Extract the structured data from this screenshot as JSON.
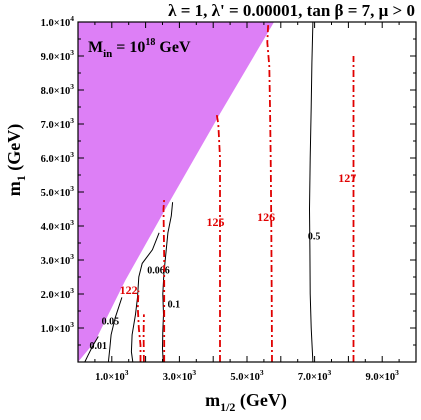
{
  "chart_data": {
    "type": "line",
    "title": "λ = 1, λ' = 0.00001, tan β = 7, μ > 0",
    "annotation": "M",
    "annotation_sub": "in",
    "annotation_rest": " = 10",
    "annotation_exp": "18",
    "annotation_unit": " GeV",
    "xlabel": "m",
    "xlabel_sub": "1/2",
    "xlabel_unit": " (GeV)",
    "ylabel": "m",
    "ylabel_sub": "1",
    "ylabel_unit": " (GeV)",
    "xlim": [
      0,
      10000
    ],
    "ylim": [
      0,
      10000
    ],
    "grid": false,
    "x_ticks": [
      {
        "value": 1000,
        "mantissa": "1.0×10",
        "exp": "3"
      },
      {
        "value": 3000,
        "mantissa": "3.0×10",
        "exp": "3"
      },
      {
        "value": 5000,
        "mantissa": "5.0×10",
        "exp": "3"
      },
      {
        "value": 7000,
        "mantissa": "7.0×10",
        "exp": "3"
      },
      {
        "value": 9000,
        "mantissa": "9.0×10",
        "exp": "3"
      }
    ],
    "y_ticks": [
      {
        "value": 1000,
        "mantissa": "1.0×10",
        "exp": "3"
      },
      {
        "value": 2000,
        "mantissa": "2.0×10",
        "exp": "3"
      },
      {
        "value": 3000,
        "mantissa": "3.0×10",
        "exp": "3"
      },
      {
        "value": 4000,
        "mantissa": "4.0×10",
        "exp": "3"
      },
      {
        "value": 5000,
        "mantissa": "5.0×10",
        "exp": "3"
      },
      {
        "value": 6000,
        "mantissa": "6.0×10",
        "exp": "3"
      },
      {
        "value": 7000,
        "mantissa": "7.0×10",
        "exp": "3"
      },
      {
        "value": 8000,
        "mantissa": "8.0×10",
        "exp": "3"
      },
      {
        "value": 9000,
        "mantissa": "9.0×10",
        "exp": "3"
      },
      {
        "value": 10000,
        "mantissa": "1.0×10",
        "exp": "4"
      }
    ],
    "excluded_region": {
      "color": "#dd7ff6",
      "points": [
        [
          0,
          3900
        ],
        [
          0,
          10000
        ],
        [
          5800,
          10000
        ],
        [
          4200,
          7300
        ],
        [
          2700,
          4700
        ],
        [
          1400,
          2400
        ],
        [
          500,
          600
        ],
        [
          0,
          0
        ]
      ]
    },
    "series": [
      {
        "label": "0.01",
        "style": "solid",
        "color": "#000000",
        "label_at": [
          340,
          380
        ],
        "points": [
          [
            200,
            0
          ],
          [
            300,
            200
          ],
          [
            450,
            500
          ],
          [
            600,
            750
          ]
        ]
      },
      {
        "label": "0.05",
        "style": "solid",
        "color": "#000000",
        "label_at": [
          700,
          1100
        ],
        "points": [
          [
            900,
            0
          ],
          [
            940,
            400
          ],
          [
            980,
            800
          ],
          [
            1100,
            1300
          ],
          [
            1300,
            1900
          ]
        ]
      },
      {
        "label": "0.066",
        "style": "solid",
        "color": "#000000",
        "label_at": [
          2050,
          2600
        ],
        "points": [
          [
            1620,
            0
          ],
          [
            1580,
            300
          ],
          [
            1600,
            800
          ],
          [
            1700,
            1400
          ],
          [
            1760,
            1900
          ],
          [
            1800,
            2500
          ],
          [
            1900,
            2900
          ],
          [
            2200,
            3300
          ],
          [
            2400,
            3800
          ]
        ]
      },
      {
        "label": "0.1",
        "style": "solid",
        "color": "#000000",
        "label_at": [
          2650,
          1600
        ],
        "points": [
          [
            2520,
            0
          ],
          [
            2500,
            400
          ],
          [
            2510,
            900
          ],
          [
            2530,
            1400
          ],
          [
            2510,
            2000
          ],
          [
            2540,
            2600
          ],
          [
            2600,
            3200
          ],
          [
            2660,
            3800
          ],
          [
            2760,
            4300
          ],
          [
            2800,
            4700
          ]
        ]
      },
      {
        "label": "0.5",
        "style": "solid",
        "color": "#000000",
        "label_at": [
          6800,
          3600
        ],
        "points": [
          [
            6950,
            0
          ],
          [
            6900,
            1000
          ],
          [
            6870,
            2000
          ],
          [
            6860,
            3300
          ],
          [
            6850,
            4500
          ],
          [
            6870,
            6000
          ],
          [
            6900,
            7500
          ],
          [
            6920,
            8800
          ],
          [
            6950,
            10000
          ]
        ]
      },
      {
        "label": "122",
        "style": "dashdot",
        "color": "#e00000",
        "label_at": [
          1230,
          2000
        ],
        "points": [
          [
            1850,
            0
          ],
          [
            1850,
            500
          ],
          [
            1800,
            1000
          ],
          [
            1770,
            1600
          ],
          [
            1790,
            2100
          ]
        ]
      },
      {
        "label": "125",
        "style": "dashdot",
        "color": "#e00000",
        "label_at": [
          3800,
          4000
        ],
        "points": [
          [
            4200,
            0
          ],
          [
            4200,
            1500
          ],
          [
            4200,
            3000
          ],
          [
            4200,
            4500
          ],
          [
            4200,
            6000
          ],
          [
            4150,
            7000
          ],
          [
            4100,
            7300
          ]
        ]
      },
      {
        "label": "126",
        "style": "dashdot",
        "color": "#e00000",
        "label_at": [
          5300,
          4150
        ],
        "points": [
          [
            5740,
            0
          ],
          [
            5730,
            2000
          ],
          [
            5720,
            4000
          ],
          [
            5700,
            6000
          ],
          [
            5680,
            7500
          ],
          [
            5660,
            8700
          ],
          [
            5600,
            9400
          ],
          [
            5630,
            10000
          ]
        ]
      },
      {
        "label": "127",
        "style": "dashdot",
        "color": "#e00000",
        "label_at": [
          7700,
          5300
        ],
        "points": [
          [
            8150,
            0
          ],
          [
            8150,
            2500
          ],
          [
            8150,
            5000
          ],
          [
            8150,
            7500
          ],
          [
            8150,
            9000
          ]
        ]
      },
      {
        "label": "",
        "style": "dashdot",
        "color": "#e00000",
        "label_at": null,
        "points": [
          [
            2550,
            0
          ],
          [
            2550,
            1500
          ],
          [
            2550,
            3000
          ],
          [
            2530,
            4500
          ],
          [
            2550,
            4800
          ]
        ]
      },
      {
        "label": "",
        "style": "dashdot",
        "color": "#e00000",
        "label_at": null,
        "points": [
          [
            1950,
            0
          ],
          [
            1940,
            800
          ],
          [
            1950,
            1400
          ]
        ]
      }
    ]
  }
}
